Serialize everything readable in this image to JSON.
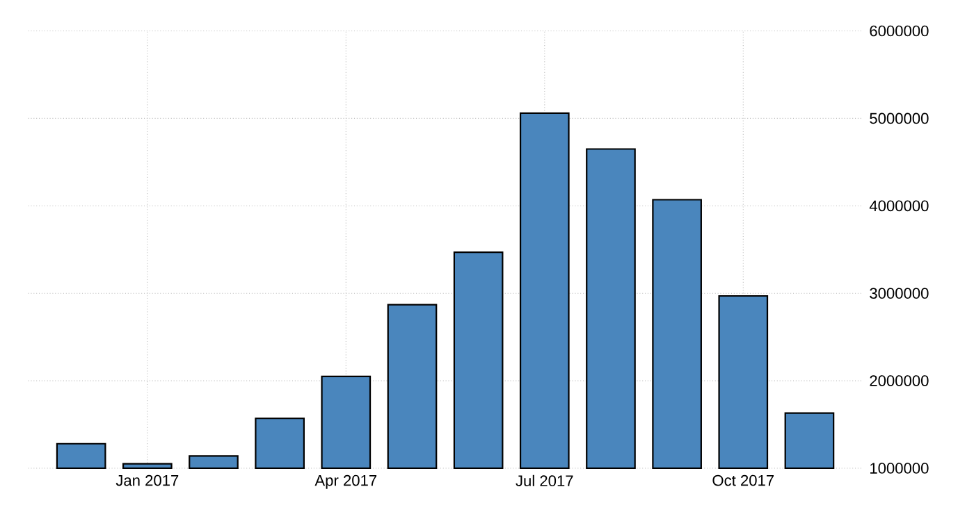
{
  "chart_data": {
    "type": "bar",
    "categories": [
      null,
      "Jan 2017",
      null,
      null,
      "Apr 2017",
      null,
      null,
      "Jul 2017",
      null,
      null,
      "Oct 2017",
      null
    ],
    "values": [
      1280000,
      1050000,
      1140000,
      1570000,
      2050000,
      2870000,
      3470000,
      5060000,
      4650000,
      4070000,
      2970000,
      1630000
    ],
    "color": "#4a86bd",
    "ylim": [
      1000000,
      6000000
    ],
    "yticks": [
      1000000,
      2000000,
      3000000,
      4000000,
      5000000,
      6000000
    ],
    "grid": true
  }
}
